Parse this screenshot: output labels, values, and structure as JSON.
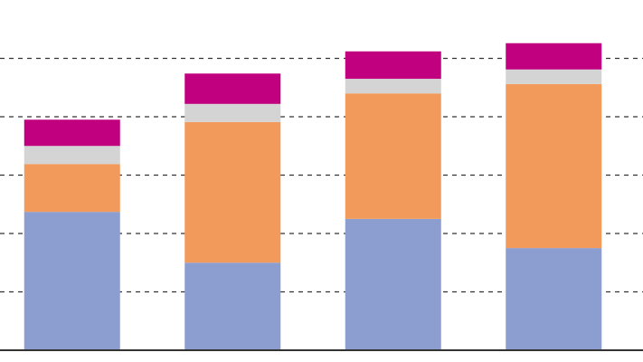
{
  "chart_data": {
    "type": "stacked-bar",
    "categories": [
      null,
      null,
      null,
      null
    ],
    "series": [
      {
        "color": "#8c9ecf",
        "values": [
          2.37,
          1.5,
          2.25,
          1.75
        ]
      },
      {
        "color": "#f29a5c",
        "values": [
          0.82,
          2.41,
          2.15,
          2.81
        ]
      },
      {
        "color": "#d4d4d4",
        "values": [
          0.31,
          0.31,
          0.25,
          0.25
        ]
      },
      {
        "color": "#c0007f",
        "values": [
          0.45,
          0.52,
          0.47,
          0.45
        ]
      }
    ],
    "ylim": [
      0,
      6
    ],
    "yticks": [
      1,
      2,
      3,
      4,
      5
    ],
    "grid": true
  }
}
